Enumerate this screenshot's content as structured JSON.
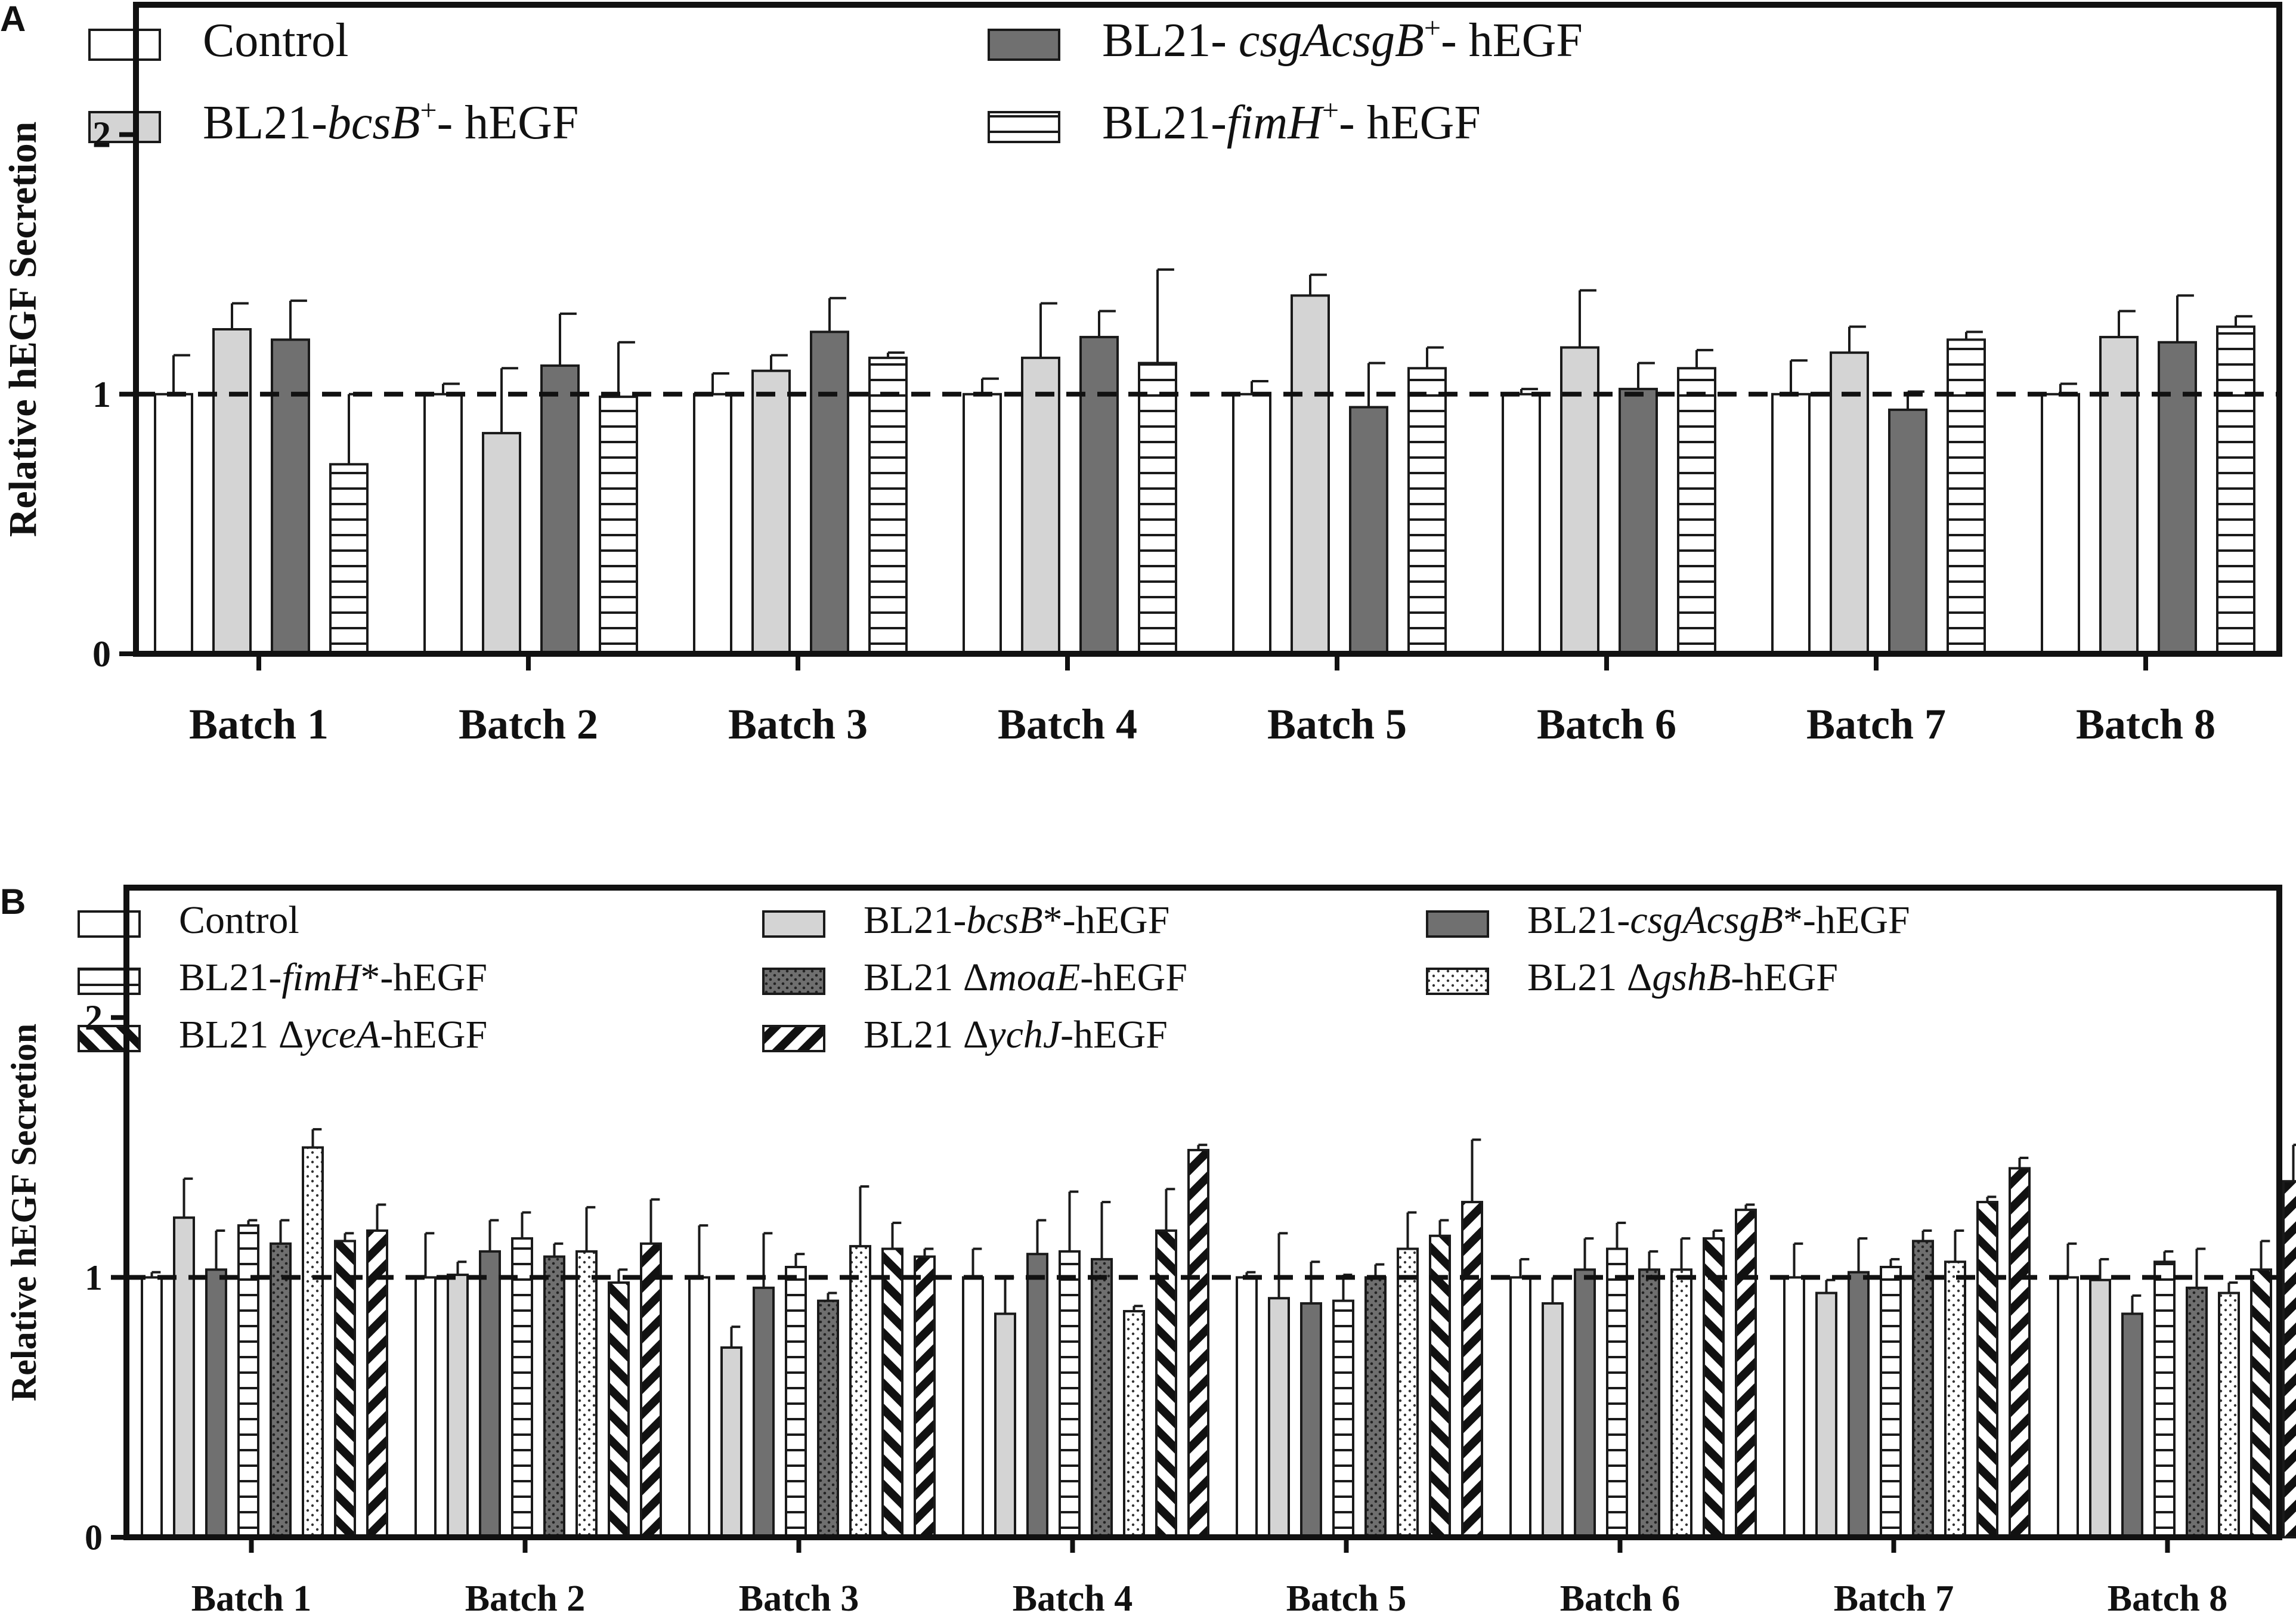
{
  "chart_data": [
    {
      "panel": "A",
      "type": "bar",
      "ylabel": "Relative hEGF Secretion",
      "ylim": [
        0,
        2.5
      ],
      "yticks": [
        0,
        1,
        2
      ],
      "reference_line": 1,
      "categories": [
        "Batch 1",
        "Batch 2",
        "Batch 3",
        "Batch 4",
        "Batch 5",
        "Batch 6",
        "Batch 7",
        "Batch 8"
      ],
      "legend": {
        "placement": "top",
        "items": [
          {
            "series": 0,
            "prefix": "Control",
            "italic": "",
            "sup": "",
            "suffix": ""
          },
          {
            "series": 2,
            "prefix": "BL21- ",
            "italic": "csgAcsgB",
            "sup": "+",
            "suffix": "- hEGF"
          },
          {
            "series": 1,
            "prefix": "BL21-",
            "italic": "bcsB",
            "sup": "+",
            "suffix": "- hEGF"
          },
          {
            "series": 3,
            "prefix": "BL21-",
            "italic": "fimH",
            "sup": "+",
            "suffix": "- hEGF"
          }
        ]
      },
      "series": [
        {
          "name": "Control",
          "fill": "white",
          "values": [
            1.0,
            1.0,
            1.0,
            1.0,
            1.0,
            1.0,
            1.0,
            1.0
          ],
          "errors": [
            0.15,
            0.04,
            0.08,
            0.06,
            0.05,
            0.02,
            0.13,
            0.04
          ]
        },
        {
          "name": "BL21-bcsB+- hEGF",
          "fill": "light-gray",
          "values": [
            1.25,
            0.85,
            1.09,
            1.14,
            1.38,
            1.18,
            1.16,
            1.22
          ],
          "errors": [
            0.1,
            0.25,
            0.06,
            0.21,
            0.08,
            0.22,
            0.1,
            0.1
          ]
        },
        {
          "name": "BL21- csgAcsgB+- hEGF",
          "fill": "dark-gray",
          "values": [
            1.21,
            1.11,
            1.24,
            1.22,
            0.95,
            1.02,
            0.94,
            1.2
          ],
          "errors": [
            0.15,
            0.2,
            0.13,
            0.1,
            0.17,
            0.1,
            0.07,
            0.18
          ]
        },
        {
          "name": "BL21-fimH+- hEGF",
          "fill": "horizontal-lines",
          "values": [
            0.73,
            0.99,
            1.14,
            1.12,
            1.1,
            1.1,
            1.21,
            1.26
          ],
          "errors": [
            0.27,
            0.21,
            0.02,
            0.36,
            0.08,
            0.07,
            0.03,
            0.04
          ]
        }
      ]
    },
    {
      "panel": "B",
      "type": "bar",
      "ylabel": "Relative hEGF Secretion",
      "ylim": [
        0,
        2.5
      ],
      "yticks": [
        0,
        1,
        2
      ],
      "reference_line": 1,
      "categories": [
        "Batch 1",
        "Batch 2",
        "Batch 3",
        "Batch 4",
        "Batch 5",
        "Batch 6",
        "Batch 7",
        "Batch 8"
      ],
      "legend": {
        "placement": "top",
        "items": [
          {
            "series": 0,
            "prefix": "Control",
            "italic": "",
            "sup": "",
            "suffix": ""
          },
          {
            "series": 1,
            "prefix": "BL21-",
            "italic": "bcsB",
            "sup": "",
            "suffix": "*-hEGF"
          },
          {
            "series": 2,
            "prefix": "BL21-",
            "italic": "csgAcsgB",
            "sup": "",
            "suffix": "*-hEGF"
          },
          {
            "series": 3,
            "prefix": "BL21-",
            "italic": "fimH",
            "sup": "",
            "suffix": "*-hEGF"
          },
          {
            "series": 4,
            "prefix": "BL21 Δ",
            "italic": "moaE",
            "sup": "",
            "suffix": "-hEGF"
          },
          {
            "series": 5,
            "prefix": "BL21 Δ",
            "italic": "gshB",
            "sup": "",
            "suffix": "-hEGF"
          },
          {
            "series": 6,
            "prefix": "BL21 Δ",
            "italic": "yceA",
            "sup": "",
            "suffix": "-hEGF"
          },
          {
            "series": 7,
            "prefix": "BL21 Δ",
            "italic": "ychJ",
            "sup": "",
            "suffix": "-hEGF"
          }
        ]
      },
      "series": [
        {
          "name": "Control",
          "fill": "white",
          "values": [
            1.0,
            1.0,
            1.0,
            1.0,
            1.0,
            1.0,
            1.0,
            1.0
          ],
          "errors": [
            0.02,
            0.17,
            0.2,
            0.11,
            0.02,
            0.07,
            0.13,
            0.13
          ]
        },
        {
          "name": "BL21-bcsB*-hEGF",
          "fill": "light-gray",
          "values": [
            1.23,
            1.01,
            0.73,
            0.86,
            0.92,
            0.9,
            0.94,
            0.99
          ],
          "errors": [
            0.15,
            0.05,
            0.08,
            0.14,
            0.25,
            0.1,
            0.05,
            0.08
          ]
        },
        {
          "name": "BL21-csgAcsgB*-hEGF",
          "fill": "dark-gray",
          "values": [
            1.03,
            1.1,
            0.96,
            1.09,
            0.9,
            1.03,
            1.02,
            0.86
          ],
          "errors": [
            0.15,
            0.12,
            0.21,
            0.13,
            0.16,
            0.12,
            0.13,
            0.07
          ]
        },
        {
          "name": "BL21-fimH*-hEGF",
          "fill": "horizontal-lines",
          "values": [
            1.2,
            1.15,
            1.04,
            1.1,
            0.91,
            1.11,
            1.04,
            1.06
          ],
          "errors": [
            0.02,
            0.1,
            0.05,
            0.23,
            0.1,
            0.1,
            0.03,
            0.04
          ]
        },
        {
          "name": "BL21 ΔmoaE-hEGF",
          "fill": "dark-dotted",
          "values": [
            1.13,
            1.08,
            0.91,
            1.07,
            1.0,
            1.03,
            1.14,
            0.96
          ],
          "errors": [
            0.09,
            0.05,
            0.03,
            0.22,
            0.05,
            0.07,
            0.04,
            0.15
          ]
        },
        {
          "name": "BL21 ΔgshB-hEGF",
          "fill": "white-dotted",
          "values": [
            1.5,
            1.1,
            1.12,
            0.87,
            1.11,
            1.03,
            1.06,
            0.94
          ],
          "errors": [
            0.07,
            0.17,
            0.23,
            0.02,
            0.14,
            0.12,
            0.12,
            0.04
          ]
        },
        {
          "name": "BL21 ΔyceA-hEGF",
          "fill": "back-diagonal",
          "values": [
            1.14,
            0.98,
            1.11,
            1.18,
            1.16,
            1.15,
            1.29,
            1.03
          ],
          "errors": [
            0.03,
            0.05,
            0.1,
            0.16,
            0.06,
            0.03,
            0.02,
            0.11
          ]
        },
        {
          "name": "BL21 ΔychJ-hEGF",
          "fill": "forward-diagonal",
          "values": [
            1.18,
            1.13,
            1.08,
            1.49,
            1.29,
            1.26,
            1.42,
            1.37
          ],
          "errors": [
            0.1,
            0.17,
            0.03,
            0.02,
            0.24,
            0.02,
            0.04,
            0.14
          ]
        }
      ]
    }
  ]
}
